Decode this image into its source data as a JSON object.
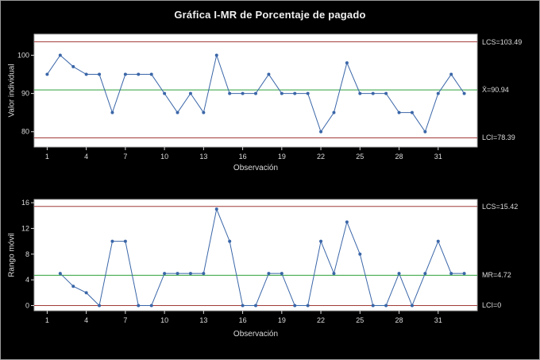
{
  "title": "Gráfica I-MR de Porcentaje de pagado",
  "colors": {
    "bg": "#000000",
    "panel_bg": "#ffffff",
    "panel_border": "#b0b0b0",
    "text": "#dcdcdc",
    "series": "#3a66a8",
    "center_line": "#2fa03c",
    "control_limit": "#a23b3b"
  },
  "chart_data": [
    {
      "type": "line",
      "name": "individuals-chart",
      "ylabel": "Valor individual",
      "xlabel": "Observación",
      "x": [
        1,
        2,
        3,
        4,
        5,
        6,
        7,
        8,
        9,
        10,
        11,
        12,
        13,
        14,
        15,
        16,
        17,
        18,
        19,
        20,
        21,
        22,
        23,
        24,
        25,
        26,
        27,
        28,
        29,
        30,
        31,
        32,
        33
      ],
      "values": [
        95,
        100,
        97,
        95,
        95,
        85,
        95,
        95,
        95,
        90,
        85,
        90,
        85,
        100,
        90,
        90,
        90,
        95,
        90,
        90,
        90,
        80,
        85,
        98,
        90,
        90,
        90,
        85,
        85,
        80,
        90,
        95,
        90
      ],
      "center": 90.94,
      "ucl": 103.49,
      "lcl": 78.39,
      "labels": {
        "ucl": "LCS=103.49",
        "center": "X̄=90.94",
        "lcl": "LCI=78.39"
      },
      "xticks": [
        1,
        4,
        7,
        10,
        13,
        16,
        19,
        22,
        25,
        28,
        31
      ],
      "yticks": [
        80,
        90,
        100
      ],
      "xlim": [
        0,
        34
      ],
      "ylim": [
        76,
        105.5
      ],
      "grid": false,
      "legend": "none"
    },
    {
      "type": "line",
      "name": "moving-range-chart",
      "ylabel": "Rango móvil",
      "xlabel": "Observación",
      "x": [
        2,
        3,
        4,
        5,
        6,
        7,
        8,
        9,
        10,
        11,
        12,
        13,
        14,
        15,
        16,
        17,
        18,
        19,
        20,
        21,
        22,
        23,
        24,
        25,
        26,
        27,
        28,
        29,
        30,
        31,
        32,
        33
      ],
      "values": [
        5,
        3,
        2,
        0,
        10,
        10,
        0,
        0,
        5,
        5,
        5,
        5,
        15,
        10,
        0,
        0,
        5,
        5,
        0,
        0,
        10,
        5,
        13,
        8,
        0,
        0,
        5,
        0,
        5,
        10,
        5,
        5
      ],
      "center": 4.72,
      "ucl": 15.42,
      "lcl": 0,
      "labels": {
        "ucl": "LCS=15.42",
        "center": "MR=4.72",
        "lcl": "LCI=0"
      },
      "xticks": [
        1,
        4,
        7,
        10,
        13,
        16,
        19,
        22,
        25,
        28,
        31
      ],
      "yticks": [
        0,
        4,
        8,
        12,
        16
      ],
      "xlim": [
        0,
        34
      ],
      "ylim": [
        -0.8,
        16.5
      ],
      "grid": false,
      "legend": "none"
    }
  ]
}
